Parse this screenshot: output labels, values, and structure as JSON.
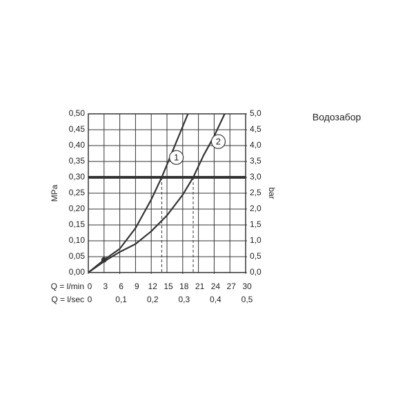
{
  "chart_data": {
    "type": "line",
    "title": "Водозабор",
    "y_label": "MPa",
    "y2_label": "bar",
    "x_row_label": "Q = l/min",
    "x2_row_label": "Q = l/sec",
    "xlim": [
      0,
      30
    ],
    "xticks": [
      0,
      3,
      6,
      9,
      12,
      15,
      18,
      21,
      24,
      27,
      30
    ],
    "x2lim": [
      0,
      0.5
    ],
    "x2ticks": [
      0,
      {
        "value": 0.1,
        "label": "0,1"
      },
      {
        "value": 0.2,
        "label": "0,2"
      },
      {
        "value": 0.3,
        "label": "0,3"
      },
      {
        "value": 0.4,
        "label": "0,4"
      },
      {
        "value": 0.5,
        "label": "0,5"
      }
    ],
    "ylim": [
      0,
      0.5
    ],
    "yticks": [
      {
        "value": 0,
        "label": "0,00"
      },
      {
        "value": 0.05,
        "label": "0,05"
      },
      {
        "value": 0.1,
        "label": "0,10"
      },
      {
        "value": 0.15,
        "label": "0,15"
      },
      {
        "value": 0.2,
        "label": "0,20"
      },
      {
        "value": 0.25,
        "label": "0,25"
      },
      {
        "value": 0.3,
        "label": "0,30"
      },
      {
        "value": 0.35,
        "label": "0,35"
      },
      {
        "value": 0.4,
        "label": "0,40"
      },
      {
        "value": 0.45,
        "label": "0,45"
      },
      {
        "value": 0.5,
        "label": "0,50"
      }
    ],
    "y2lim": [
      0,
      5
    ],
    "y2ticks": [
      {
        "value": 0,
        "label": "0,0"
      },
      {
        "value": 0.5,
        "label": "0,5"
      },
      {
        "value": 1,
        "label": "1,0"
      },
      {
        "value": 1.5,
        "label": "1,5"
      },
      {
        "value": 2,
        "label": "2,0"
      },
      {
        "value": 2.5,
        "label": "2,5"
      },
      {
        "value": 3,
        "label": "3,0"
      },
      {
        "value": 3.5,
        "label": "3,5"
      },
      {
        "value": 4,
        "label": "4,0"
      },
      {
        "value": 4.5,
        "label": "4,5"
      },
      {
        "value": 5,
        "label": "5,0"
      }
    ],
    "grid": true,
    "color": "#333333",
    "reference_line": 0.3,
    "drops": [
      14,
      20
    ],
    "point": {
      "x": 3,
      "y": 0.04
    },
    "series": [
      {
        "name": "1",
        "color": "#333333",
        "x": [
          0,
          3,
          6,
          9,
          12,
          14,
          16,
          19
        ],
        "values": [
          0,
          0.04,
          0.075,
          0.14,
          0.23,
          0.3,
          0.38,
          0.5
        ]
      },
      {
        "name": "2",
        "color": "#333333",
        "x": [
          0,
          3,
          6,
          9,
          12,
          15,
          18,
          20,
          22,
          24,
          26
        ],
        "values": [
          0,
          0.035,
          0.065,
          0.09,
          0.13,
          0.18,
          0.245,
          0.3,
          0.37,
          0.43,
          0.5
        ]
      }
    ]
  }
}
